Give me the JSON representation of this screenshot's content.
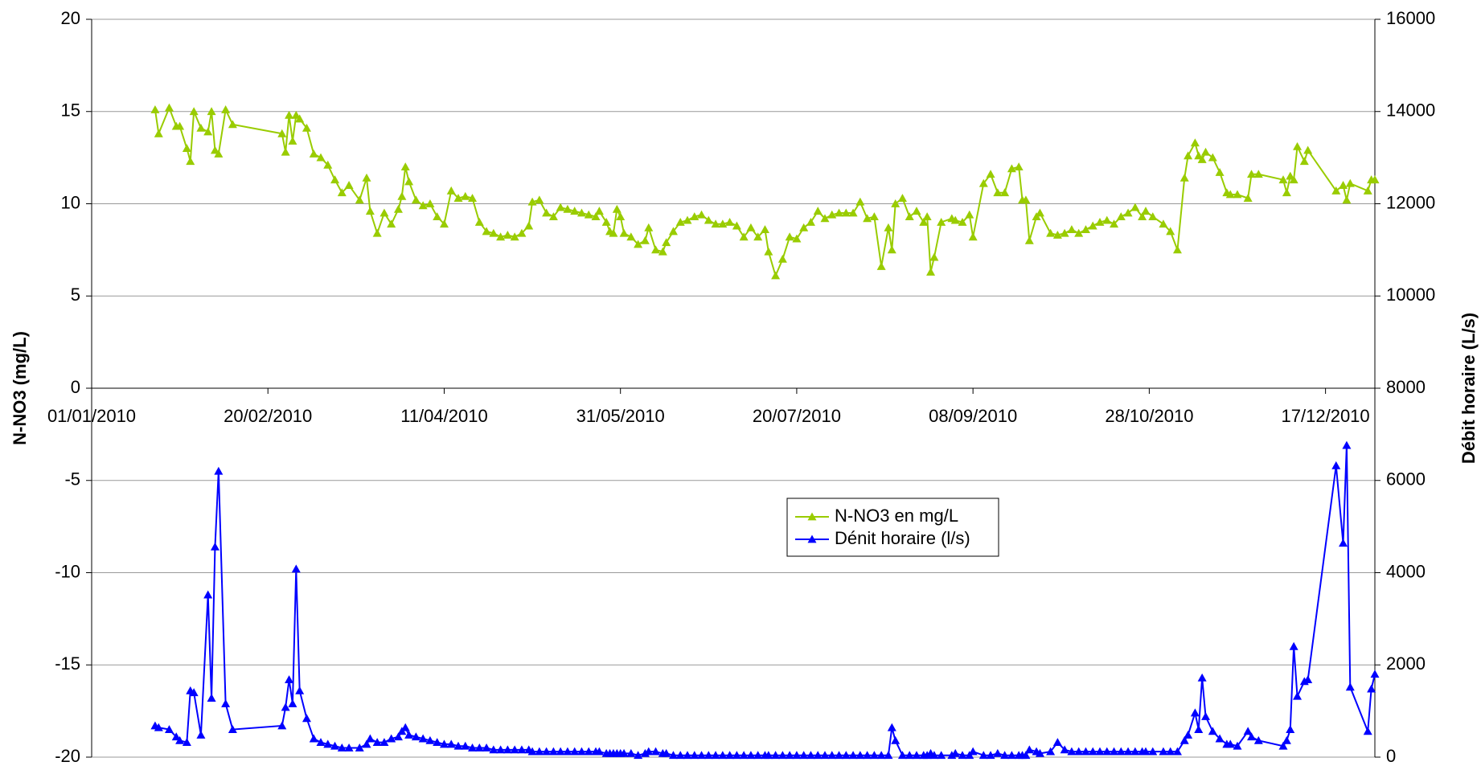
{
  "chart_data": {
    "type": "line",
    "y_label": "N-NO3 (mg/L)",
    "y2_label": "Débit horaire (L/s)",
    "xlim": [
      "2010-01-01",
      "2010-12-31"
    ],
    "xticks": [
      {
        "value": "2010-01-01",
        "label": "01/01/2010"
      },
      {
        "value": "2010-02-20",
        "label": "20/02/2010"
      },
      {
        "value": "2010-04-11",
        "label": "11/04/2010"
      },
      {
        "value": "2010-05-31",
        "label": "31/05/2010"
      },
      {
        "value": "2010-07-20",
        "label": "20/07/2010"
      },
      {
        "value": "2010-09-08",
        "label": "08/09/2010"
      },
      {
        "value": "2010-10-28",
        "label": "28/10/2010"
      },
      {
        "value": "2010-12-17",
        "label": "17/12/2010"
      }
    ],
    "ylim": [
      -20,
      20
    ],
    "yticks": [
      -20,
      -15,
      -10,
      -5,
      0,
      5,
      10,
      15,
      20
    ],
    "y2lim": [
      0,
      16000
    ],
    "y2ticks": [
      0,
      2000,
      4000,
      6000,
      8000,
      10000,
      12000,
      14000,
      16000
    ],
    "grid": true,
    "x": [
      "2010-01-19",
      "2010-01-20",
      "2010-01-23",
      "2010-01-25",
      "2010-01-26",
      "2010-01-28",
      "2010-01-29",
      "2010-01-30",
      "2010-02-01",
      "2010-02-03",
      "2010-02-04",
      "2010-02-05",
      "2010-02-06",
      "2010-02-08",
      "2010-02-10",
      "2010-02-24",
      "2010-02-25",
      "2010-02-26",
      "2010-02-27",
      "2010-02-28",
      "2010-03-01",
      "2010-03-03",
      "2010-03-05",
      "2010-03-07",
      "2010-03-09",
      "2010-03-11",
      "2010-03-13",
      "2010-03-15",
      "2010-03-18",
      "2010-03-20",
      "2010-03-21",
      "2010-03-23",
      "2010-03-25",
      "2010-03-27",
      "2010-03-29",
      "2010-03-30",
      "2010-03-31",
      "2010-04-01",
      "2010-04-03",
      "2010-04-05",
      "2010-04-07",
      "2010-04-09",
      "2010-04-11",
      "2010-04-13",
      "2010-04-15",
      "2010-04-17",
      "2010-04-19",
      "2010-04-21",
      "2010-04-23",
      "2010-04-25",
      "2010-04-27",
      "2010-04-29",
      "2010-05-01",
      "2010-05-03",
      "2010-05-05",
      "2010-05-06",
      "2010-05-08",
      "2010-05-10",
      "2010-05-12",
      "2010-05-14",
      "2010-05-16",
      "2010-05-18",
      "2010-05-20",
      "2010-05-22",
      "2010-05-24",
      "2010-05-25",
      "2010-05-27",
      "2010-05-28",
      "2010-05-29",
      "2010-05-30",
      "2010-05-31",
      "2010-06-01",
      "2010-06-03",
      "2010-06-05",
      "2010-06-07",
      "2010-06-08",
      "2010-06-10",
      "2010-06-12",
      "2010-06-13",
      "2010-06-15",
      "2010-06-17",
      "2010-06-19",
      "2010-06-21",
      "2010-06-23",
      "2010-06-25",
      "2010-06-27",
      "2010-06-29",
      "2010-07-01",
      "2010-07-03",
      "2010-07-05",
      "2010-07-07",
      "2010-07-09",
      "2010-07-11",
      "2010-07-12",
      "2010-07-14",
      "2010-07-16",
      "2010-07-18",
      "2010-07-20",
      "2010-07-22",
      "2010-07-24",
      "2010-07-26",
      "2010-07-28",
      "2010-07-30",
      "2010-08-01",
      "2010-08-03",
      "2010-08-05",
      "2010-08-07",
      "2010-08-09",
      "2010-08-11",
      "2010-08-13",
      "2010-08-15",
      "2010-08-16",
      "2010-08-17",
      "2010-08-19",
      "2010-08-21",
      "2010-08-23",
      "2010-08-25",
      "2010-08-26",
      "2010-08-27",
      "2010-08-28",
      "2010-08-30",
      "2010-09-02",
      "2010-09-03",
      "2010-09-05",
      "2010-09-07",
      "2010-09-08",
      "2010-09-11",
      "2010-09-13",
      "2010-09-15",
      "2010-09-17",
      "2010-09-19",
      "2010-09-21",
      "2010-09-22",
      "2010-09-23",
      "2010-09-24",
      "2010-09-26",
      "2010-09-27",
      "2010-09-30",
      "2010-10-02",
      "2010-10-04",
      "2010-10-06",
      "2010-10-08",
      "2010-10-10",
      "2010-10-12",
      "2010-10-14",
      "2010-10-16",
      "2010-10-18",
      "2010-10-20",
      "2010-10-22",
      "2010-10-24",
      "2010-10-26",
      "2010-10-27",
      "2010-10-29",
      "2010-11-01",
      "2010-11-03",
      "2010-11-05",
      "2010-11-07",
      "2010-11-08",
      "2010-11-10",
      "2010-11-11",
      "2010-11-12",
      "2010-11-13",
      "2010-11-15",
      "2010-11-17",
      "2010-11-19",
      "2010-11-20",
      "2010-11-22",
      "2010-11-25",
      "2010-11-26",
      "2010-11-28",
      "2010-12-05",
      "2010-12-06",
      "2010-12-07",
      "2010-12-08",
      "2010-12-09",
      "2010-12-11",
      "2010-12-12",
      "2010-12-20",
      "2010-12-22",
      "2010-12-23",
      "2010-12-24",
      "2010-12-29",
      "2010-12-30",
      "2010-12-31"
    ],
    "series": [
      {
        "name": "N-NO3 en mg/L",
        "color": "#99cc00",
        "marker": "triangle",
        "values": [
          15.1,
          13.8,
          15.2,
          14.2,
          14.2,
          13.0,
          12.3,
          15.0,
          14.1,
          13.9,
          15.0,
          12.9,
          12.7,
          15.1,
          14.3,
          13.8,
          12.8,
          14.8,
          13.4,
          14.8,
          14.6,
          14.1,
          12.7,
          12.5,
          12.1,
          11.3,
          10.6,
          11.0,
          10.2,
          11.4,
          9.6,
          8.4,
          9.5,
          8.9,
          9.7,
          10.4,
          12.0,
          11.2,
          10.2,
          9.9,
          10.0,
          9.3,
          8.9,
          10.7,
          10.3,
          10.4,
          10.3,
          9.0,
          8.5,
          8.4,
          8.2,
          8.3,
          8.2,
          8.4,
          8.8,
          10.1,
          10.2,
          9.5,
          9.3,
          9.8,
          9.7,
          9.6,
          9.5,
          9.4,
          9.3,
          9.6,
          9.0,
          8.5,
          8.4,
          9.7,
          9.3,
          8.4,
          8.2,
          7.8,
          8.0,
          8.7,
          7.5,
          7.4,
          7.9,
          8.5,
          9.0,
          9.1,
          9.3,
          9.4,
          9.1,
          8.9,
          8.9,
          9.0,
          8.8,
          8.2,
          8.7,
          8.2,
          8.6,
          7.4,
          6.1,
          7.0,
          8.2,
          8.1,
          8.7,
          9.0,
          9.6,
          9.2,
          9.4,
          9.5,
          9.5,
          9.5,
          10.1,
          9.2,
          9.3,
          6.6,
          8.7,
          7.5,
          10.0,
          10.3,
          9.3,
          9.6,
          9.0,
          9.3,
          6.3,
          7.1,
          9.0,
          9.2,
          9.1,
          9.0,
          9.4,
          8.2,
          11.1,
          11.6,
          10.6,
          10.6,
          11.9,
          12.0,
          10.2,
          10.2,
          8.0,
          9.3,
          9.5,
          8.4,
          8.3,
          8.4,
          8.6,
          8.4,
          8.6,
          8.8,
          9.0,
          9.1,
          8.9,
          9.3,
          9.5,
          9.8,
          9.3,
          9.6,
          9.3,
          8.9,
          8.5,
          7.5,
          11.4,
          12.6,
          13.3,
          12.6,
          12.4,
          12.8,
          12.5,
          11.7,
          10.6,
          10.5,
          10.5,
          10.3,
          11.6,
          11.6,
          11.3,
          10.6,
          11.5,
          11.3,
          13.1,
          12.3,
          12.9,
          10.7,
          11.0,
          10.2,
          11.1,
          10.7,
          11.3,
          11.3
        ]
      },
      {
        "name": "Dénit horaire (l/s)",
        "color": "#0000ff",
        "marker": "triangle",
        "axis": "y2",
        "values": [
          680,
          640,
          600,
          440,
          360,
          320,
          1440,
          1400,
          480,
          3520,
          1280,
          4560,
          6200,
          1160,
          600,
          680,
          1080,
          1680,
          1160,
          4080,
          1440,
          840,
          400,
          320,
          280,
          240,
          200,
          200,
          200,
          280,
          400,
          320,
          320,
          400,
          440,
          560,
          640,
          480,
          440,
          400,
          360,
          320,
          280,
          280,
          240,
          240,
          200,
          200,
          200,
          160,
          160,
          160,
          160,
          160,
          160,
          120,
          120,
          120,
          120,
          120,
          120,
          120,
          120,
          120,
          120,
          120,
          80,
          80,
          80,
          80,
          80,
          80,
          80,
          40,
          80,
          120,
          120,
          80,
          80,
          40,
          40,
          40,
          40,
          40,
          40,
          40,
          40,
          40,
          40,
          40,
          40,
          40,
          40,
          40,
          40,
          40,
          40,
          40,
          40,
          40,
          40,
          40,
          40,
          40,
          40,
          40,
          40,
          40,
          40,
          40,
          40,
          640,
          360,
          40,
          40,
          40,
          40,
          40,
          80,
          40,
          40,
          40,
          80,
          40,
          40,
          120,
          40,
          40,
          80,
          40,
          40,
          40,
          40,
          40,
          160,
          120,
          80,
          120,
          320,
          160,
          120,
          120,
          120,
          120,
          120,
          120,
          120,
          120,
          120,
          120,
          120,
          120,
          120,
          120,
          120,
          120,
          360,
          480,
          960,
          600,
          1720,
          880,
          560,
          400,
          280,
          280,
          240,
          560,
          440,
          360,
          240,
          360,
          600,
          2400,
          1320,
          1640,
          1680,
          6320,
          4640,
          6760,
          1520,
          560,
          1480,
          1800
        ]
      }
    ]
  }
}
